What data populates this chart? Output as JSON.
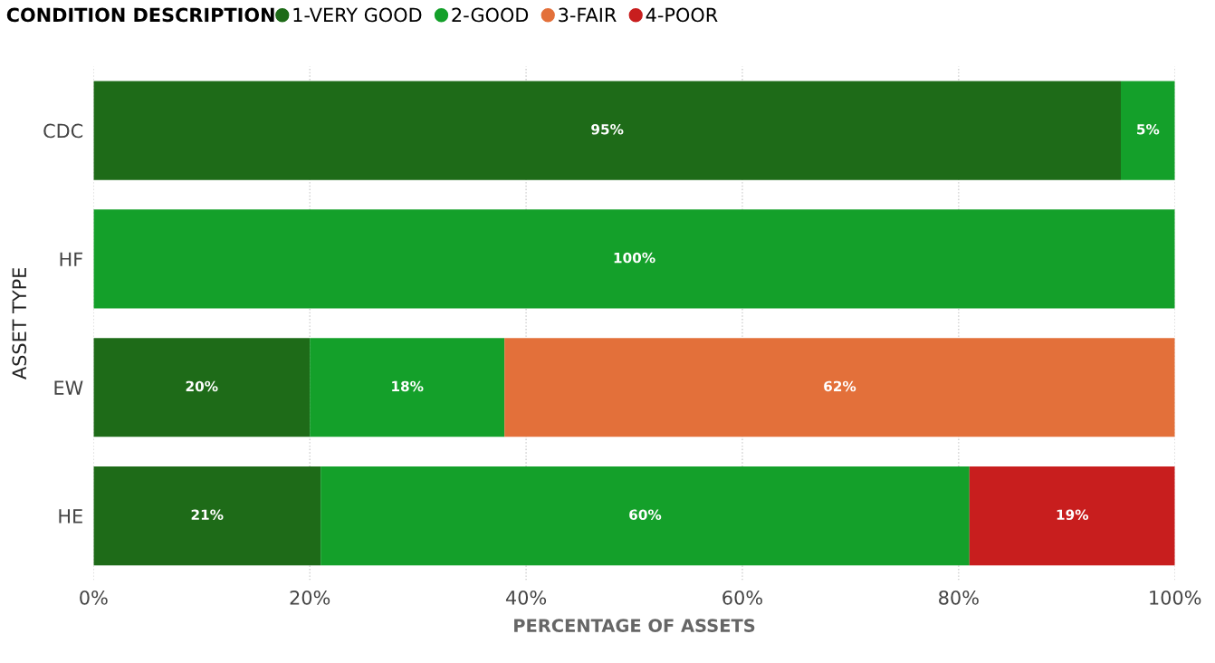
{
  "chart_data": {
    "type": "bar",
    "orientation": "horizontal",
    "stacked": true,
    "categories": [
      "CDC",
      "HF",
      "EW",
      "HE"
    ],
    "series": [
      {
        "name": "1-VERY GOOD",
        "color": "#1e6b18",
        "values": [
          95,
          null,
          20,
          21
        ]
      },
      {
        "name": "2-GOOD",
        "color": "#14a02a",
        "values": [
          5,
          100,
          18,
          60
        ]
      },
      {
        "name": "3-FAIR",
        "color": "#e3703a",
        "values": [
          null,
          null,
          62,
          null
        ]
      },
      {
        "name": "4-POOR",
        "color": "#c81e1e",
        "values": [
          null,
          null,
          null,
          19
        ]
      }
    ],
    "legend_title": "CONDITION DESCRIPTION",
    "legend": "top left",
    "xlabel": "PERCENTAGE OF ASSETS",
    "ylabel": "ASSET TYPE",
    "xlim": [
      0,
      100
    ],
    "xticks": [
      {
        "value": 0,
        "label": "0%"
      },
      {
        "value": 20,
        "label": "20%"
      },
      {
        "value": 40,
        "label": "40%"
      },
      {
        "value": 60,
        "label": "60%"
      },
      {
        "value": 80,
        "label": "80%"
      },
      {
        "value": 100,
        "label": "100%"
      }
    ],
    "grid": "x",
    "marker": "circle",
    "value_labels": [
      [
        "95%",
        null,
        "20%",
        "21%"
      ],
      [
        "5%",
        "100%",
        "18%",
        "60%"
      ],
      [
        null,
        null,
        "62%",
        null
      ],
      [
        null,
        null,
        null,
        "19%"
      ]
    ]
  }
}
